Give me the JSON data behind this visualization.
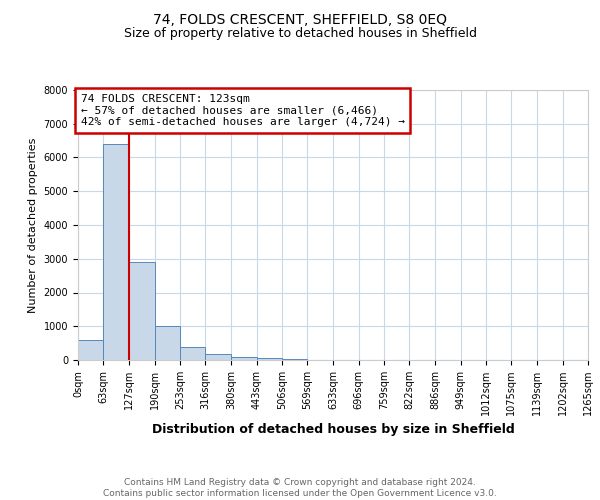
{
  "title": "74, FOLDS CRESCENT, SHEFFIELD, S8 0EQ",
  "subtitle": "Size of property relative to detached houses in Sheffield",
  "xlabel": "Distribution of detached houses by size in Sheffield",
  "ylabel": "Number of detached properties",
  "bar_edges": [
    0,
    63,
    127,
    190,
    253,
    316,
    380,
    443,
    506,
    569,
    633,
    696,
    759,
    822,
    886,
    949,
    1012,
    1075,
    1139,
    1202,
    1265
  ],
  "bar_heights": [
    600,
    6400,
    2900,
    1000,
    380,
    175,
    100,
    50,
    15,
    5,
    3,
    2,
    1,
    1,
    0,
    0,
    0,
    0,
    0,
    0
  ],
  "bar_color": "#c8d8e8",
  "bar_edge_color": "#5588bb",
  "vline_x": 127,
  "vline_color": "#cc0000",
  "ylim": [
    0,
    8000
  ],
  "annotation_text": "74 FOLDS CRESCENT: 123sqm\n← 57% of detached houses are smaller (6,466)\n42% of semi-detached houses are larger (4,724) →",
  "annotation_box_color": "#cc0000",
  "footer_text": "Contains HM Land Registry data © Crown copyright and database right 2024.\nContains public sector information licensed under the Open Government Licence v3.0.",
  "title_fontsize": 10,
  "subtitle_fontsize": 9,
  "xlabel_fontsize": 9,
  "ylabel_fontsize": 8,
  "tick_fontsize": 7,
  "footer_fontsize": 6.5,
  "annotation_fontsize": 8,
  "background_color": "#ffffff",
  "grid_color": "#c8d8e8"
}
